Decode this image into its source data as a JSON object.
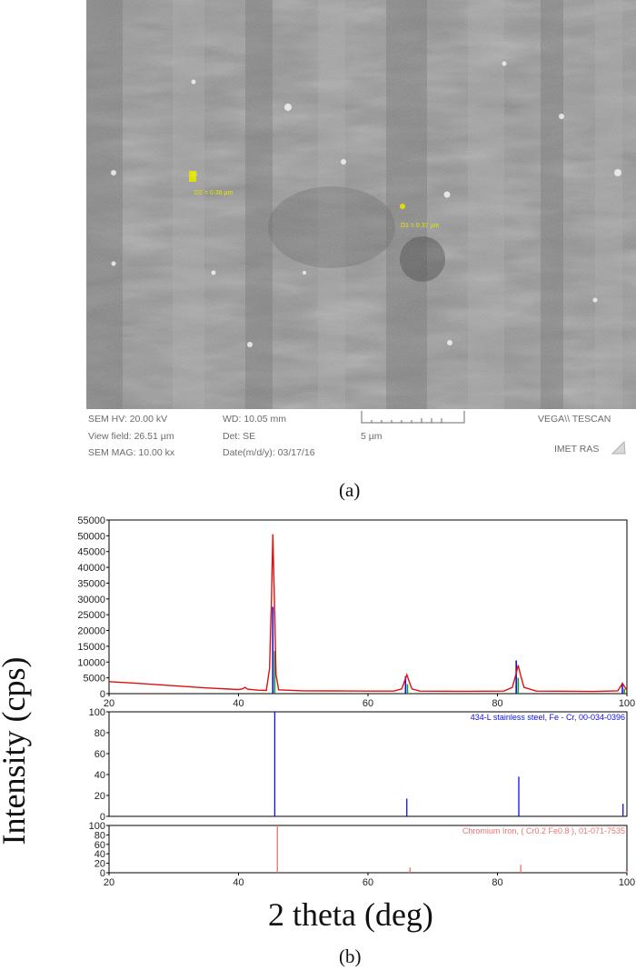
{
  "sem": {
    "measurements": [
      "D2 = 0.36 µm",
      "D1 = 0.37 µm"
    ],
    "info": {
      "hv": "SEM HV: 20.00 kV",
      "wd": "WD: 10.05 mm",
      "view_field": "View field: 26.51 µm",
      "det": "Det: SE",
      "mag": "SEM MAG: 10.00 kx",
      "date": "Date(m/d/y): 03/17/16",
      "scale": "5 µm",
      "brand": "VEGA\\\\ TESCAN",
      "lab": "IMET RAS"
    },
    "colors": {
      "annotation": "#e6e600"
    }
  },
  "caption_a": "(a)",
  "caption_b": "(b)",
  "chart_data": [
    {
      "type": "line",
      "title": "",
      "xlabel": "2 theta (deg)",
      "ylabel": "Intensity (cps)",
      "xlim": [
        20,
        100
      ],
      "ylim": [
        0,
        55000
      ],
      "x_ticks": [
        "20",
        "40",
        "60",
        "80",
        "100"
      ],
      "y_ticks": [
        "0",
        "5000",
        "10000",
        "15000",
        "20000",
        "25000",
        "30000",
        "35000",
        "40000",
        "45000",
        "50000",
        "55000"
      ],
      "series": [
        {
          "color": "#e01010",
          "points": [
            [
              20,
              3800
            ],
            [
              25,
              3200
            ],
            [
              30,
              2500
            ],
            [
              35,
              1800
            ],
            [
              40,
              1300
            ],
            [
              40.6,
              1500
            ],
            [
              41,
              2000
            ],
            [
              41.4,
              1400
            ],
            [
              43,
              1100
            ],
            [
              44.3,
              1000
            ],
            [
              44.8,
              8000
            ],
            [
              45.1,
              30000
            ],
            [
              45.3,
              50500
            ],
            [
              45.55,
              30000
            ],
            [
              45.8,
              6000
            ],
            [
              46.2,
              1200
            ],
            [
              50,
              900
            ],
            [
              55,
              850
            ],
            [
              60,
              800
            ],
            [
              64,
              800
            ],
            [
              65.2,
              1500
            ],
            [
              65.7,
              4200
            ],
            [
              66,
              6000
            ],
            [
              66.3,
              4200
            ],
            [
              66.8,
              1500
            ],
            [
              68,
              800
            ],
            [
              75,
              750
            ],
            [
              81,
              800
            ],
            [
              82.3,
              2000
            ],
            [
              82.9,
              6500
            ],
            [
              83.2,
              9000
            ],
            [
              83.5,
              6500
            ],
            [
              84.1,
              2000
            ],
            [
              86,
              800
            ],
            [
              95,
              700
            ],
            [
              98.6,
              900
            ],
            [
              99.1,
              2500
            ],
            [
              99.3,
              3300
            ],
            [
              99.6,
              2400
            ],
            [
              100,
              1000
            ]
          ]
        }
      ],
      "reference_sticks": [
        {
          "x": 45.3,
          "y": 27500,
          "color": "#1010e0"
        },
        {
          "x": 45.6,
          "y": 13500,
          "color": "#10a010"
        },
        {
          "x": 65.8,
          "y": 5500,
          "color": "#1010e0"
        },
        {
          "x": 66.1,
          "y": 3000,
          "color": "#10a010"
        },
        {
          "x": 82.9,
          "y": 10500,
          "color": "#1010e0"
        },
        {
          "x": 83.2,
          "y": 5000,
          "color": "#10a010"
        },
        {
          "x": 99.3,
          "y": 3200,
          "color": "#1010e0"
        },
        {
          "x": 99.6,
          "y": 1500,
          "color": "#10a010"
        }
      ]
    },
    {
      "type": "bar",
      "title": "434-L stainless steel, Fe - Cr, 00-034-0396",
      "xlim": [
        20,
        100
      ],
      "ylim": [
        0,
        100
      ],
      "y_ticks": [
        "0",
        "20",
        "40",
        "60",
        "80",
        "100"
      ],
      "color": "#1010e0",
      "x": [
        45.6,
        66.0,
        83.3,
        99.4
      ],
      "values": [
        100,
        17,
        38,
        12
      ]
    },
    {
      "type": "bar",
      "title": "Chromium Iron, ( Cr0.2 Fe0.8 ), 01-071-7535",
      "xlim": [
        20,
        100
      ],
      "ylim": [
        0,
        100
      ],
      "x_ticks": [
        "20",
        "40",
        "60",
        "80",
        "100"
      ],
      "y_ticks": [
        "0",
        "20",
        "40",
        "60",
        "80",
        "100"
      ],
      "color": "#f07070",
      "x": [
        46.0,
        66.5,
        83.6,
        100.0
      ],
      "values": [
        100,
        11,
        17,
        3
      ]
    }
  ]
}
